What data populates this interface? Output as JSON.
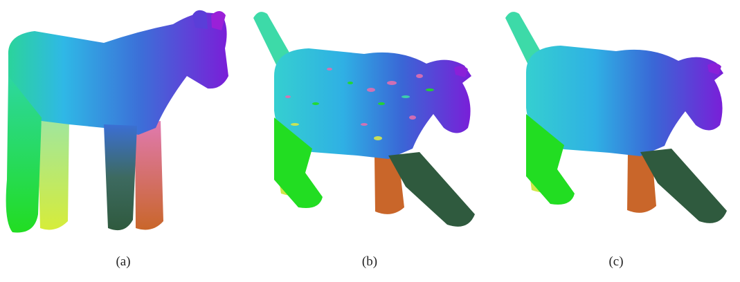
{
  "figure": {
    "panels": [
      {
        "caption": "(a)",
        "subject": "horse-mesh-rest-pose"
      },
      {
        "caption": "(b)",
        "subject": "horse-mesh-deformed-noisy"
      },
      {
        "caption": "(c)",
        "subject": "horse-mesh-deformed-smooth"
      }
    ],
    "colors": {
      "hind_green": "#22dd22",
      "tail_cyan": "#3ddaa8",
      "body_cyan": "#2fb7e6",
      "body_blue": "#3c6fd8",
      "head_purple": "#7d18d6",
      "leg_yellow": "#d8e84a",
      "leg_orange": "#c9662a",
      "leg_darkgreen": "#2f5a3e",
      "pink": "#e06fb0"
    }
  }
}
